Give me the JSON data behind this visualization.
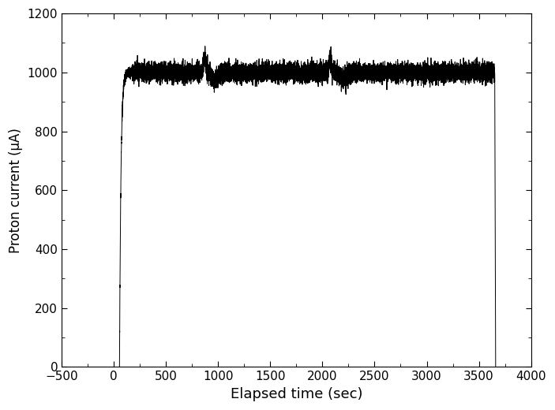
{
  "xlabel": "Elapsed time (sec)",
  "ylabel": "Proton current (μA)",
  "xlim": [
    -500,
    4000
  ],
  "ylim": [
    0,
    1200
  ],
  "xticks": [
    -500,
    0,
    500,
    1000,
    1500,
    2000,
    2500,
    3000,
    3500,
    4000
  ],
  "yticks": [
    0,
    200,
    400,
    600,
    800,
    1000,
    1200
  ],
  "line_color": "#000000",
  "line_width": 0.7,
  "background_color": "#ffffff",
  "rise_start": 55,
  "rise_end": 175,
  "steady_mean": 1000,
  "steady_noise_base": 15,
  "drop_start": 3652,
  "drop_duration": 8,
  "seed": 42,
  "xlabel_fontsize": 13,
  "ylabel_fontsize": 12,
  "tick_fontsize": 11,
  "n_points": 18000
}
